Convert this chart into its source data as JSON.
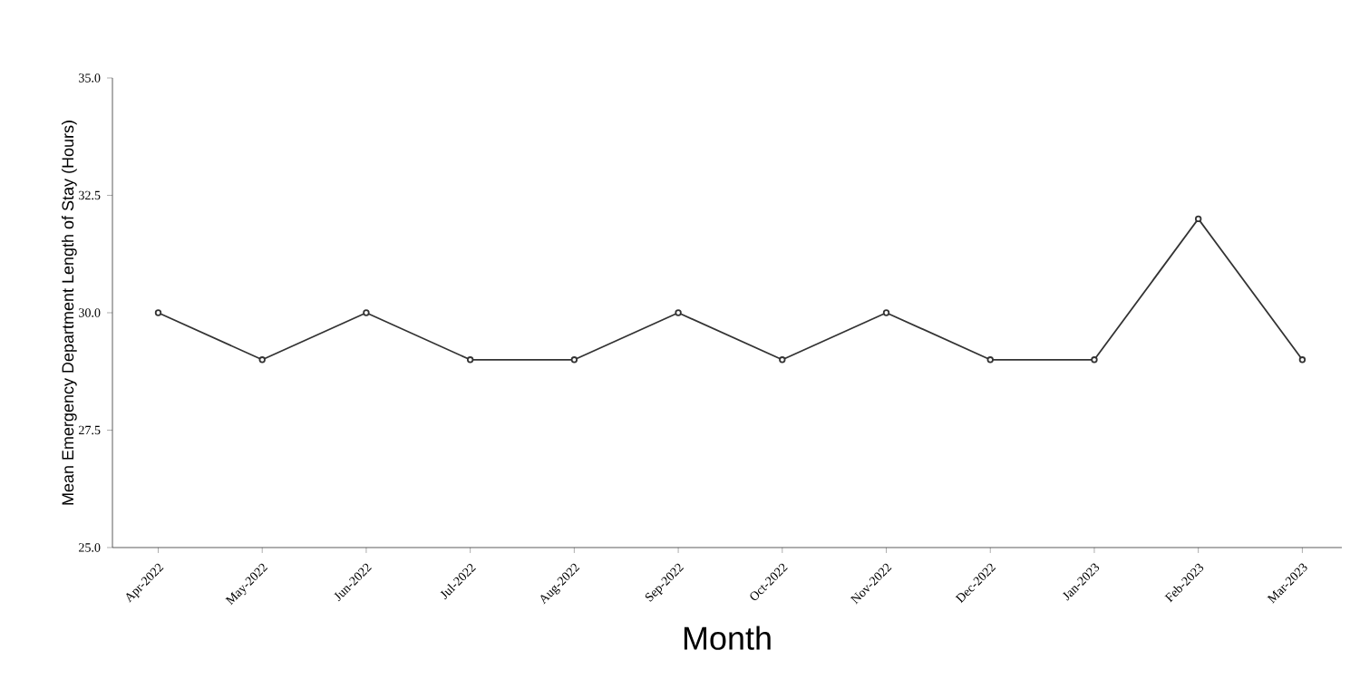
{
  "chart_data": {
    "type": "line",
    "xlabel": "Month",
    "ylabel": "Mean Emergency Department Length of Stay (Hours)",
    "categories": [
      "Apr-2022",
      "May-2022",
      "Jun-2022",
      "Jul-2022",
      "Aug-2022",
      "Sep-2022",
      "Oct-2022",
      "Nov-2022",
      "Dec-2022",
      "Jan-2023",
      "Feb-2023",
      "Mar-2023"
    ],
    "series": [
      {
        "color": "#333333",
        "values": [
          30,
          29,
          30,
          29,
          29,
          30,
          29,
          30,
          29,
          29,
          32,
          29
        ]
      }
    ],
    "ylim": [
      25,
      35
    ],
    "yticks": [
      {
        "value": 25,
        "label": "25.0"
      },
      {
        "value": 27.5,
        "label": "27.5"
      },
      {
        "value": 30,
        "label": "30.0"
      },
      {
        "value": 32.5,
        "label": "32.5"
      },
      {
        "value": 35,
        "label": "35.0"
      }
    ],
    "marker": "circle",
    "line_style": "solid",
    "grid": false
  }
}
